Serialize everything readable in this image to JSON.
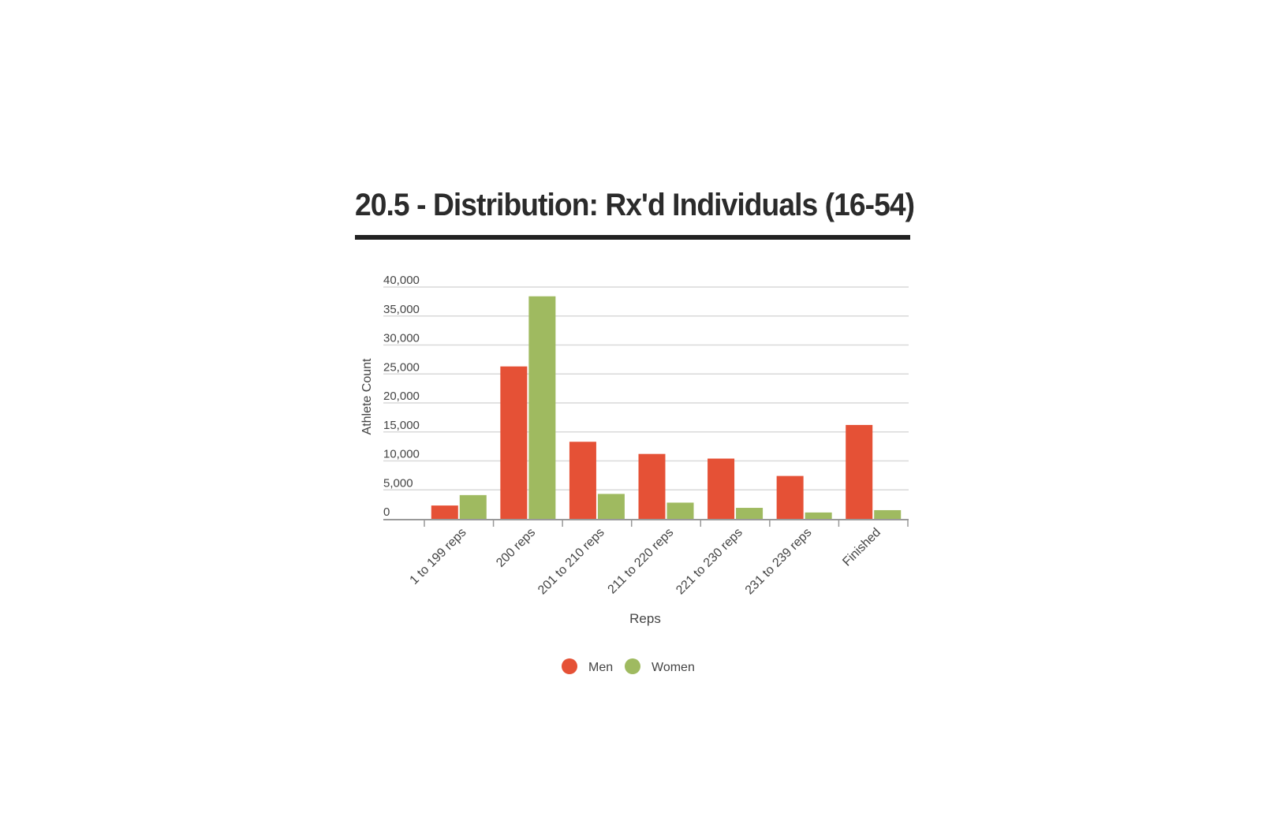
{
  "chart_data": {
    "type": "bar",
    "title": "20.5 - Distribution: Rx'd Individuals (16-54)",
    "xlabel": "Reps",
    "ylabel": "Athlete Count",
    "categories": [
      "1 to 199 reps",
      "200 reps",
      "201 to 210 reps",
      "211 to 220 reps",
      "221 to 230 reps",
      "231 to 239 reps",
      "Finished"
    ],
    "series": [
      {
        "name": "Men",
        "color": "#e55136",
        "values": [
          2300,
          26300,
          13300,
          11200,
          10400,
          7400,
          16200
        ]
      },
      {
        "name": "Women",
        "color": "#9fba60",
        "values": [
          4100,
          38400,
          4300,
          2800,
          1900,
          1100,
          1500
        ]
      }
    ],
    "yticks": [
      "0",
      "5,000",
      "10,000",
      "15,000",
      "20,000",
      "25,000",
      "30,000",
      "35,000",
      "40,000"
    ],
    "ylim": [
      0,
      40000
    ],
    "grid": true,
    "legend_position": "bottom-center"
  }
}
